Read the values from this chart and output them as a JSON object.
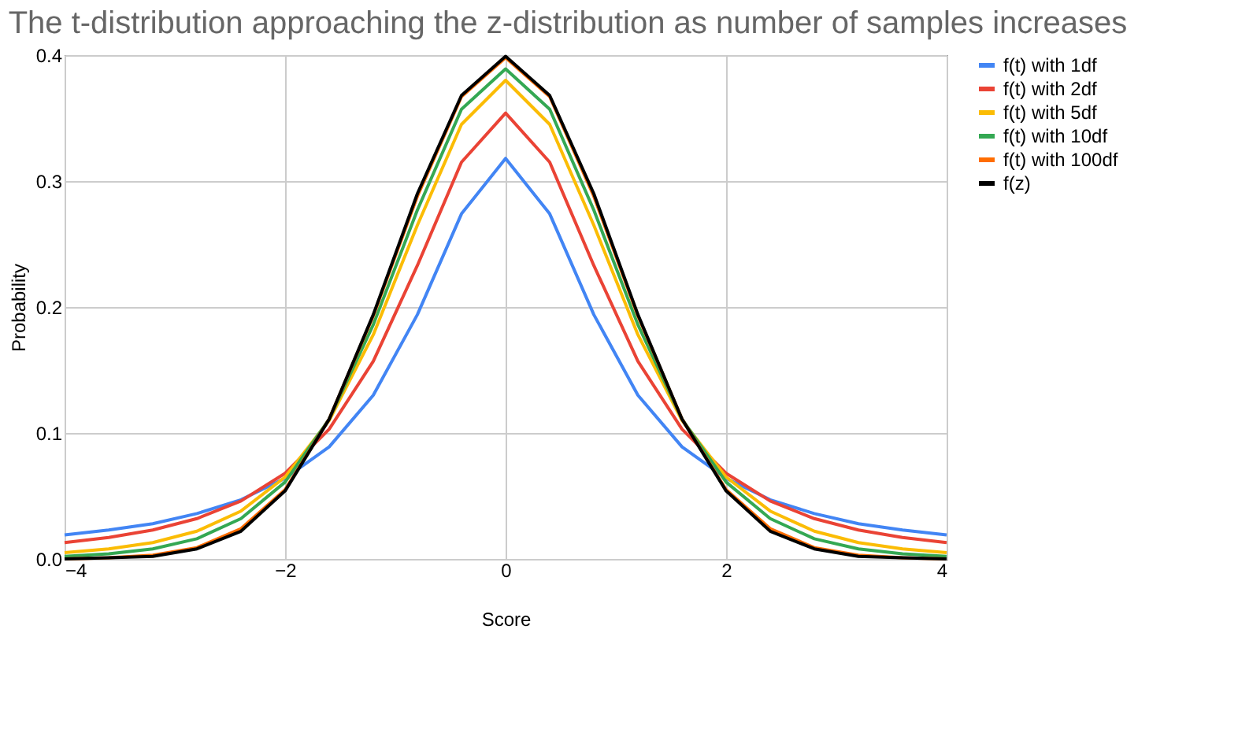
{
  "chart_data": {
    "type": "line",
    "title": "The t-distribution approaching the z-distribution as number of samples increases",
    "xlabel": "Score",
    "ylabel": "Probability",
    "x": [
      -4.0,
      -3.6,
      -3.2,
      -2.8,
      -2.4,
      -2.0,
      -1.6,
      -1.2,
      -0.8,
      -0.4,
      0.0,
      0.4,
      0.8,
      1.2,
      1.6,
      2.0,
      2.4,
      2.8,
      3.2,
      3.6,
      4.0
    ],
    "series": [
      {
        "name": "f(t) with 1df",
        "color": "#4285f4",
        "values": [
          0.019,
          0.023,
          0.028,
          0.036,
          0.047,
          0.064,
          0.089,
          0.13,
          0.194,
          0.274,
          0.318,
          0.274,
          0.194,
          0.13,
          0.089,
          0.064,
          0.047,
          0.036,
          0.028,
          0.023,
          0.019
        ]
      },
      {
        "name": "f(t) with 2df",
        "color": "#ea4335",
        "values": [
          0.013,
          0.017,
          0.023,
          0.032,
          0.046,
          0.068,
          0.103,
          0.157,
          0.233,
          0.315,
          0.354,
          0.315,
          0.233,
          0.157,
          0.103,
          0.068,
          0.046,
          0.032,
          0.023,
          0.017,
          0.013
        ]
      },
      {
        "name": "f(t) with 5df",
        "color": "#fbbc04",
        "values": [
          0.005,
          0.008,
          0.013,
          0.022,
          0.038,
          0.065,
          0.11,
          0.178,
          0.265,
          0.345,
          0.38,
          0.345,
          0.265,
          0.178,
          0.11,
          0.065,
          0.038,
          0.022,
          0.013,
          0.008,
          0.005
        ]
      },
      {
        "name": "f(t) with 10df",
        "color": "#34a853",
        "values": [
          0.002,
          0.004,
          0.008,
          0.016,
          0.032,
          0.061,
          0.111,
          0.186,
          0.277,
          0.357,
          0.389,
          0.357,
          0.277,
          0.186,
          0.111,
          0.061,
          0.032,
          0.016,
          0.008,
          0.004,
          0.002
        ]
      },
      {
        "name": "f(t) with 100df",
        "color": "#ff6d01",
        "values": [
          0.0,
          0.001,
          0.003,
          0.009,
          0.024,
          0.055,
          0.111,
          0.193,
          0.288,
          0.367,
          0.398,
          0.367,
          0.288,
          0.193,
          0.111,
          0.055,
          0.024,
          0.009,
          0.003,
          0.001,
          0.0
        ]
      },
      {
        "name": "f(z)",
        "color": "#000000",
        "values": [
          0.0,
          0.001,
          0.002,
          0.008,
          0.022,
          0.054,
          0.111,
          0.194,
          0.29,
          0.368,
          0.399,
          0.368,
          0.29,
          0.194,
          0.111,
          0.054,
          0.022,
          0.008,
          0.002,
          0.001,
          0.0
        ]
      }
    ],
    "xlim": [
      -4,
      4
    ],
    "xticks": [
      -4,
      -2,
      0,
      2,
      4
    ],
    "ylim": [
      0,
      0.4
    ],
    "yticks": [
      {
        "value": 0,
        "label": "0.0"
      },
      0.1,
      0.2,
      0.3,
      0.4
    ],
    "grid": true,
    "legend": "right",
    "marker": "none",
    "line_style": "solid"
  }
}
